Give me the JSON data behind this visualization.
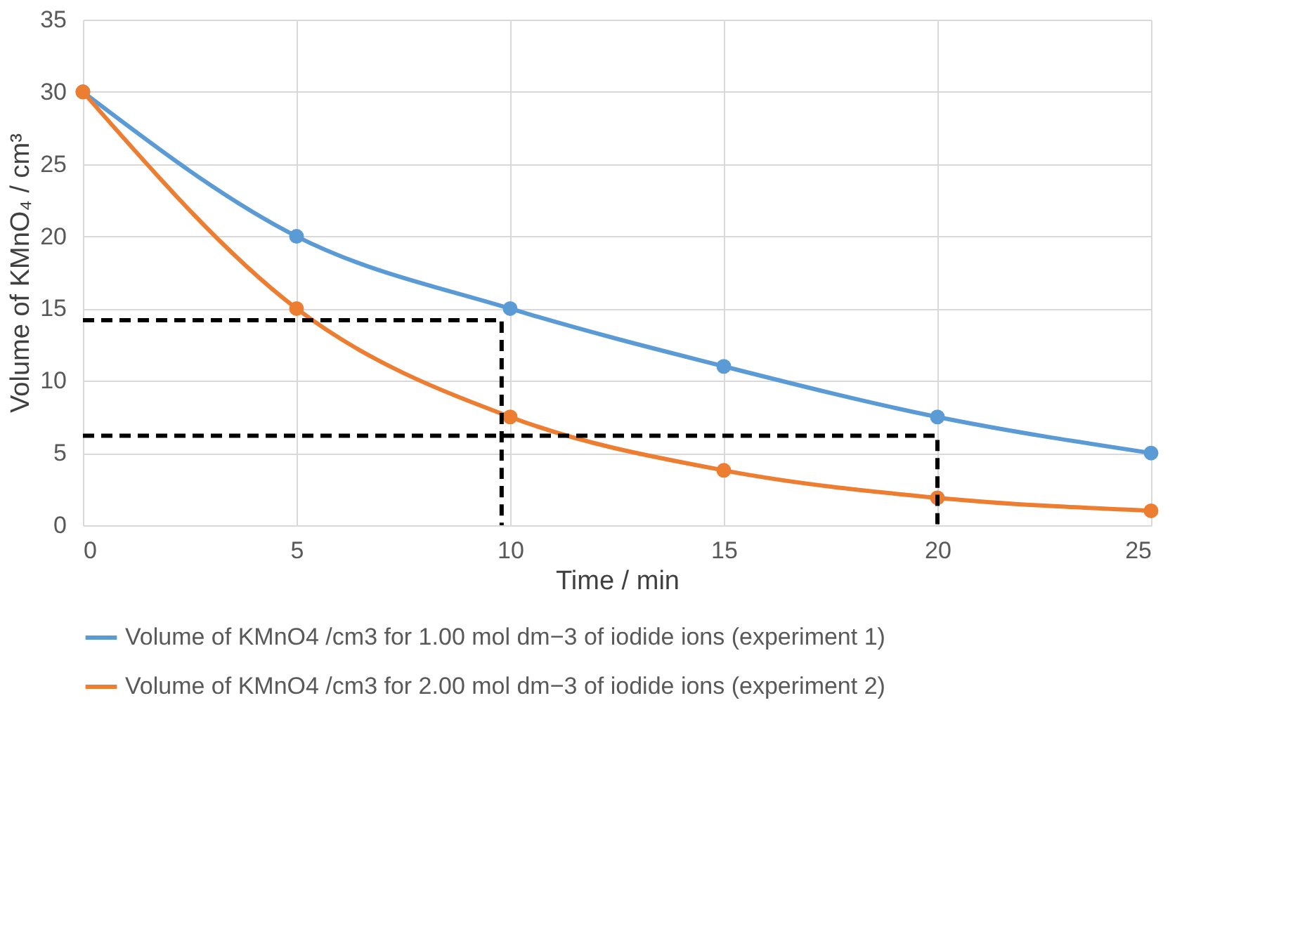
{
  "chart_data": {
    "type": "line",
    "xlabel": "Time / min",
    "ylabel": "Volume of KMnO₄ / cm³",
    "x": [
      0,
      5,
      10,
      15,
      20,
      25
    ],
    "xlim": [
      0,
      25
    ],
    "xticks": [
      0,
      5,
      10,
      15,
      20,
      25
    ],
    "ylim": [
      0,
      35
    ],
    "yticks": [
      0,
      5,
      10,
      15,
      20,
      25,
      30,
      35
    ],
    "grid": true,
    "legend": "bottom",
    "marker": "circle",
    "line_style": "solid",
    "series": [
      {
        "name": "Volume of KMnO4 /cm3 for 1.00 mol dm−3 of iodide ions (experiment 1)",
        "color": "#5b9bd5",
        "values": [
          30,
          20,
          15,
          11,
          7.5,
          5
        ]
      },
      {
        "name": "Volume of KMnO4 /cm3 for 2.00 mol dm−3 of iodide ions (experiment 2)",
        "color": "#ed7d31",
        "values": [
          30,
          15,
          7.5,
          3.8,
          1.9,
          1.0
        ]
      },
      {
        "type": "line",
        "color": "#000000",
        "line_style": "dashed",
        "marker": "none",
        "x": [
          0,
          9.8,
          9.8
        ],
        "values": [
          14.2,
          14.2,
          0
        ]
      },
      {
        "type": "line",
        "color": "#000000",
        "line_style": "dashed",
        "marker": "none",
        "x": [
          0,
          20,
          20
        ],
        "values": [
          6.2,
          6.2,
          0
        ]
      }
    ]
  }
}
